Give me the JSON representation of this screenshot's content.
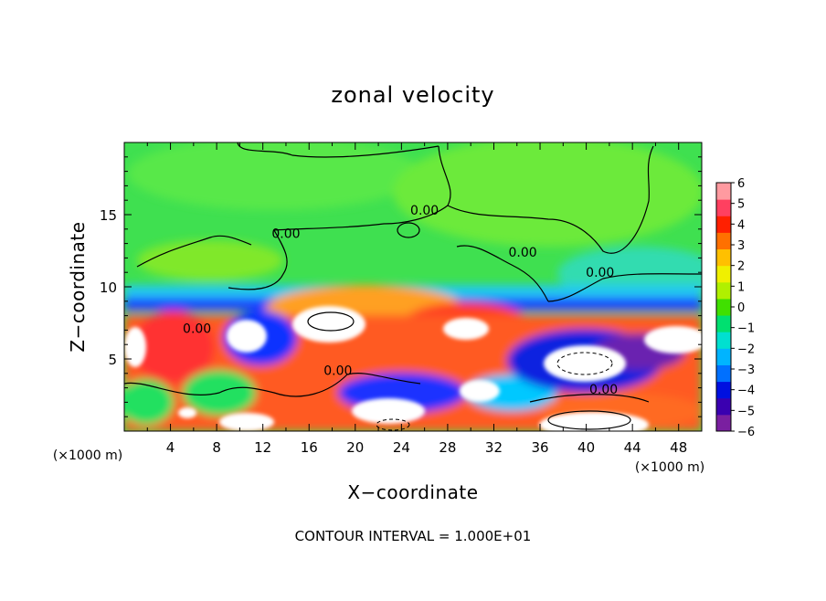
{
  "chart_data": {
    "type": "heatmap",
    "title": "zonal velocity",
    "xlabel": "X−coordinate",
    "ylabel": "Z−coordinate",
    "x_unit_label": "(×1000 m)",
    "x_unit_label_right": "(×1000 m)",
    "xlim": [
      0,
      50
    ],
    "ylim": [
      0,
      20
    ],
    "x_ticks": [
      4,
      8,
      12,
      16,
      20,
      24,
      28,
      32,
      36,
      40,
      44,
      48
    ],
    "y_ticks": [
      5,
      10,
      15
    ],
    "colorbar": {
      "min": -6,
      "max": 6,
      "ticks": [
        6,
        5,
        4,
        3,
        2,
        1,
        0,
        -1,
        -2,
        -3,
        -4,
        -5,
        -6
      ],
      "tick_labels": [
        "6",
        "5",
        "4",
        "3",
        "2",
        "1",
        "0",
        "−1",
        "−2",
        "−3",
        "−4",
        "−5",
        "−6"
      ],
      "colors": [
        "#7a1fa0",
        "#3a00b0",
        "#0010e0",
        "#0070ff",
        "#00b4ff",
        "#00e0d0",
        "#00e070",
        "#40e000",
        "#b0f000",
        "#f0f000",
        "#ffc000",
        "#ff7000",
        "#ff2000",
        "#ff4060",
        "#ff9aa0"
      ]
    },
    "contour_labels": [
      {
        "text": "0.00",
        "x": 14.0,
        "y": 13.4
      },
      {
        "text": "0.00",
        "x": 26.0,
        "y": 15.0
      },
      {
        "text": "0.00",
        "x": 34.5,
        "y": 12.1
      },
      {
        "text": "0.00",
        "x": 41.2,
        "y": 10.7
      },
      {
        "text": "0.00",
        "x": 6.3,
        "y": 6.8
      },
      {
        "text": "0.00",
        "x": 18.5,
        "y": 3.9
      },
      {
        "text": "0.00",
        "x": 41.5,
        "y": 2.6
      }
    ],
    "footer": "CONTOUR INTERVAL = 1.000E+01"
  }
}
